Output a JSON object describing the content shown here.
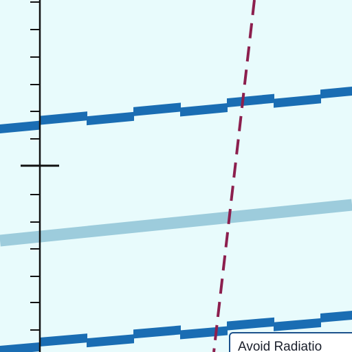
{
  "colors": {
    "background": "#e8fbfc",
    "axis": "#111111",
    "stair_road": "#1a6db3",
    "light_road": "#9dccdc",
    "dashed_route": "#8c1f4e",
    "legend_border": "#1a4f8a",
    "legend_background": "#ffffff"
  },
  "legend": {
    "text": "Avoid Radiatio"
  }
}
